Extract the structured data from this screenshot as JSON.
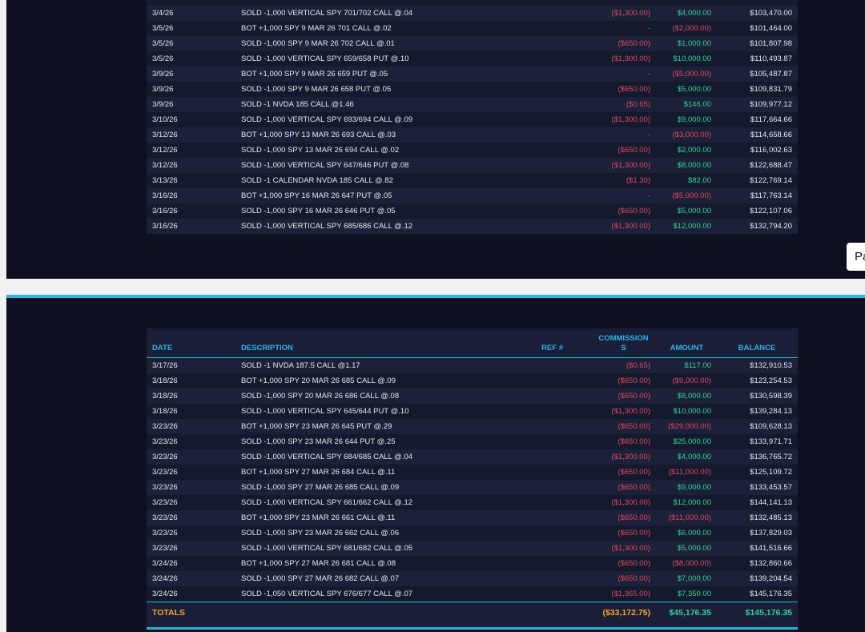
{
  "top_table": {
    "rows": [
      [
        "3/4/26",
        "SOLD -1,000 VERTICAL SPY 701/702 CALL @.04",
        "($1,300.00)",
        "$4,000.00",
        "$103,470.00"
      ],
      [
        "3/5/26",
        "BOT +1,000 SPY 9 MAR 26 701 CALL @.02",
        "-",
        "($2,000.00)",
        "$101,464.00"
      ],
      [
        "3/5/26",
        "SOLD -1,000 SPY 9 MAR 26 702 CALL @.01",
        "($650.00)",
        "$1,000.00",
        "$101,807.98"
      ],
      [
        "3/5/26",
        "SOLD -1,000 VERTICAL SPY 659/658 PUT @.10",
        "($1,300.00)",
        "$10,000.00",
        "$110,493.87"
      ],
      [
        "3/9/26",
        "BOT +1,000 SPY 9 MAR 26 659 PUT @.05",
        "-",
        "($5,000.00)",
        "$105,487.87"
      ],
      [
        "3/9/26",
        "SOLD -1,000 SPY 9 MAR 26 658 PUT @.05",
        "($650.00)",
        "$5,000.00",
        "$109,831.79"
      ],
      [
        "3/9/26",
        "SOLD -1 NVDA 185 CALL @1.46",
        "($0.65)",
        "$146.00",
        "$109,977.12"
      ],
      [
        "3/10/26",
        "SOLD -1,000 VERTICAL SPY 693/694 CALL @.09",
        "($1,300.00)",
        "$9,000.00",
        "$117,664.66"
      ],
      [
        "3/12/26",
        "BOT +1,000 SPY 13 MAR 26 693 CALL @.03",
        "-",
        "($3,000.00)",
        "$114,658.66"
      ],
      [
        "3/12/26",
        "SOLD -1,000 SPY 13 MAR 26 694 CALL @.02",
        "($650.00)",
        "$2,000.00",
        "$116,002.63"
      ],
      [
        "3/12/26",
        "SOLD -1,000 VERTICAL SPY 647/646 PUT @.08",
        "($1,300.00)",
        "$8,000.00",
        "$122,688.47"
      ],
      [
        "3/13/26",
        "SOLD -1 CALENDAR NVDA 185 CALL @.82",
        "($1.30)",
        "$82.00",
        "$122,769.14"
      ],
      [
        "3/16/26",
        "BOT +1,000 SPY 16 MAR 26 647 PUT @.05",
        "-",
        "($5,000.00)",
        "$117,763.14"
      ],
      [
        "3/16/26",
        "SOLD -1,000 SPY 16 MAR 26 646 PUT @.05",
        "($650.00)",
        "$5,000.00",
        "$122,107.06"
      ],
      [
        "3/16/26",
        "SOLD -1,000 VERTICAL SPY 685/686 CALL @.12",
        "($1,300.00)",
        "$12,000.00",
        "$132,794.20"
      ]
    ]
  },
  "side_button": "Pa",
  "bottom_table": {
    "headers": [
      "DATE",
      "DESCRIPTION",
      "REF #",
      "COMMISSIONS",
      "AMOUNT",
      "BALANCE"
    ],
    "rows": [
      [
        "3/17/26",
        "SOLD -1 NVDA 187.5 CALL @1.17",
        "($0.65)",
        "$117.00",
        "$132,910.53"
      ],
      [
        "3/18/26",
        "BOT +1,000 SPY 20 MAR 26 685 CALL @.09",
        "($650.00)",
        "($9,000.00)",
        "$123,254.53"
      ],
      [
        "3/18/26",
        "SOLD -1,000 SPY 20 MAR 26 686 CALL @.08",
        "($650.00)",
        "$8,000.00",
        "$130,598.39"
      ],
      [
        "3/18/26",
        "SOLD -1,000 VERTICAL SPY 645/644 PUT @.10",
        "($1,300.00)",
        "$10,000.00",
        "$139,284.13"
      ],
      [
        "3/23/26",
        "BOT +1,000 SPY 23 MAR 26 645 PUT @.29",
        "($650.00)",
        "($29,000.00)",
        "$109,628.13"
      ],
      [
        "3/23/26",
        "SOLD -1,000 SPY 23 MAR 26 644 PUT @.25",
        "($650.00)",
        "$25,000.00",
        "$133,971.71"
      ],
      [
        "3/23/26",
        "SOLD -1,000 VERTICAL SPY 684/685 CALL @.04",
        "($1,300.00)",
        "$4,000.00",
        "$136,765.72"
      ],
      [
        "3/23/26",
        "BOT +1,000 SPY 27 MAR 26 684 CALL @.11",
        "($650.00)",
        "($11,000.00)",
        "$125,109.72"
      ],
      [
        "3/23/26",
        "SOLD -1,000 SPY 27 MAR 26 685 CALL @.09",
        "($650.00)",
        "$9,000.00",
        "$133,453.57"
      ],
      [
        "3/23/26",
        "SOLD -1,000 VERTICAL SPY 661/662 CALL @.12",
        "($1,300.00)",
        "$12,000.00",
        "$144,141.13"
      ],
      [
        "3/23/26",
        "BOT +1,000 SPY 23 MAR 26 661 CALL @.11",
        "($650.00)",
        "($11,000.00)",
        "$132,485.13"
      ],
      [
        "3/23/26",
        "SOLD -1,000 SPY 23 MAR 26 662 CALL @.06",
        "($650.00)",
        "$6,000.00",
        "$137,829.03"
      ],
      [
        "3/23/26",
        "SOLD -1,000 VERTICAL SPY 681/682 CALL @.05",
        "($1,300.00)",
        "$5,000.00",
        "$141,516.66"
      ],
      [
        "3/24/26",
        "BOT +1,000 SPY 27 MAR 26 681 CALL @.08",
        "($650.00)",
        "($8,000.00)",
        "$132,860.66"
      ],
      [
        "3/24/26",
        "SOLD -1,000 SPY 27 MAR 26 682 CALL @.07",
        "($650.00)",
        "$7,000.00",
        "$139,204.54"
      ],
      [
        "3/24/26",
        "SOLD -1,050 VERTICAL SPY 676/677 CALL @.07",
        "($1,365.00)",
        "$7,350.00",
        "$145,176.35"
      ]
    ],
    "totals": {
      "label": "TOTALS",
      "commission": "($33,172.75)",
      "amount": "$45,176.35",
      "balance": "$145,176.35"
    }
  }
}
